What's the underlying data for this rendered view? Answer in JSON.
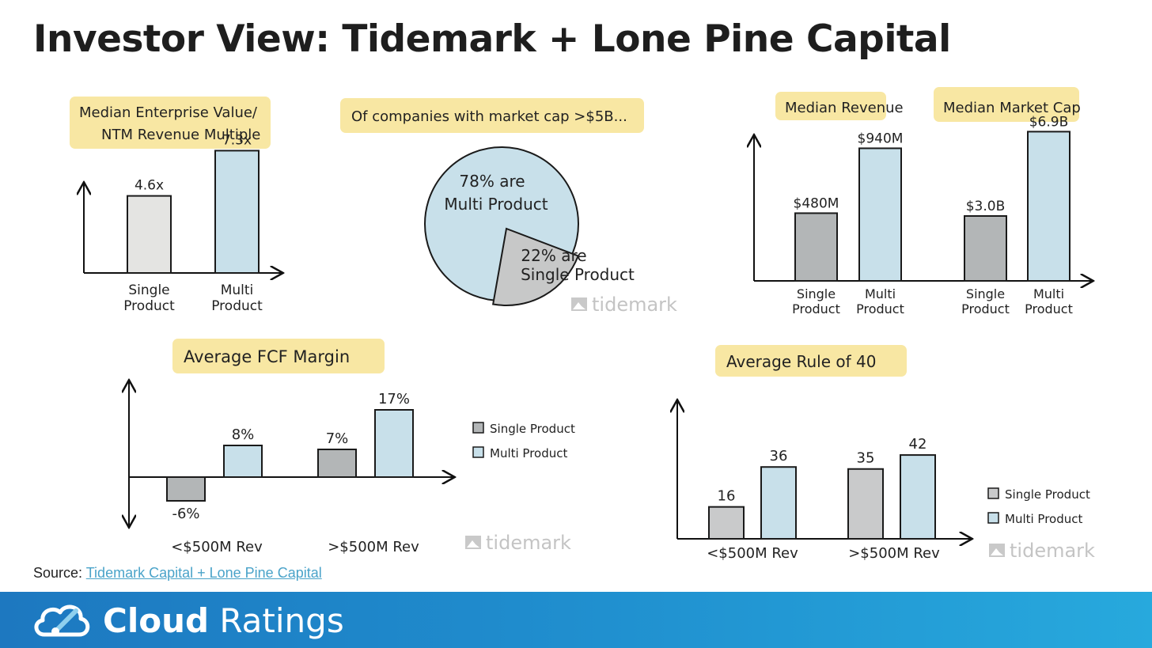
{
  "page": {
    "title": "Investor View: Tidemark + Lone Pine Capital",
    "source_label": "Source:",
    "source_link": "Tidemark Capital + Lone Pine Capital",
    "watermark": "tidemark",
    "footer_brand_bold": "Cloud",
    "footer_brand_light": "Ratings"
  },
  "colors": {
    "single": "#e4e4e2",
    "single_dark": "#b3b6b7",
    "multi": "#c8e0ea",
    "highlight": "#f8e7a3"
  },
  "chart_data": [
    {
      "type": "bar",
      "title": "Median Enterprise Value/ NTM Revenue Multiple",
      "title_lines": [
        "Median Enterprise Value/",
        "NTM Revenue Multiple"
      ],
      "categories": [
        "Single Product",
        "Multi Product"
      ],
      "category_lines": [
        [
          "Single",
          "Product"
        ],
        [
          "Multi",
          "Product"
        ]
      ],
      "values": [
        4.6,
        7.3
      ],
      "labels": [
        "4.6x",
        "7.3x"
      ],
      "ylim": [
        0,
        8.5
      ]
    },
    {
      "type": "pie",
      "title": "Of companies with market cap >$5B...",
      "slices": [
        {
          "name": "Multi Product",
          "value": 78,
          "label_lines": [
            "78% are",
            "Multi Product"
          ]
        },
        {
          "name": "Single Product",
          "value": 22,
          "label_lines": [
            "22% are",
            "Single Product"
          ]
        }
      ]
    },
    {
      "type": "bar",
      "titles": [
        "Median Revenue",
        "Median Market Cap"
      ],
      "groups": [
        "Median Revenue",
        "Median Market Cap"
      ],
      "categories": [
        "Single Product",
        "Multi Product",
        "Single Product",
        "Multi Product"
      ],
      "category_lines": [
        [
          "Single",
          "Product"
        ],
        [
          "Multi",
          "Product"
        ],
        [
          "Single",
          "Product"
        ],
        [
          "Multi",
          "Product"
        ]
      ],
      "values": [
        480,
        940,
        3000,
        6900
      ],
      "units": [
        "$M",
        "$M",
        "$M",
        "$M"
      ],
      "labels": [
        "$480M",
        "$940M",
        "$3.0B",
        "$6.9B"
      ]
    },
    {
      "type": "bar",
      "title": "Average FCF Margin",
      "categories": [
        "<$500M Rev",
        ">$500M Rev"
      ],
      "series": [
        {
          "name": "Single Product",
          "values": [
            -6,
            7
          ],
          "labels": [
            "-6%",
            "7%"
          ]
        },
        {
          "name": "Multi Product",
          "values": [
            8,
            17
          ],
          "labels": [
            "8%",
            "17%"
          ]
        }
      ],
      "ylim": [
        -8,
        20
      ],
      "legend": "right"
    },
    {
      "type": "bar",
      "title": "Average Rule of 40",
      "categories": [
        "<$500M Rev",
        ">$500M Rev"
      ],
      "series": [
        {
          "name": "Single Product",
          "values": [
            16,
            35
          ],
          "labels": [
            "16",
            "35"
          ]
        },
        {
          "name": "Multi Product",
          "values": [
            36,
            42
          ],
          "labels": [
            "36",
            "42"
          ]
        }
      ],
      "ylim": [
        0,
        52
      ],
      "legend": "right"
    }
  ]
}
